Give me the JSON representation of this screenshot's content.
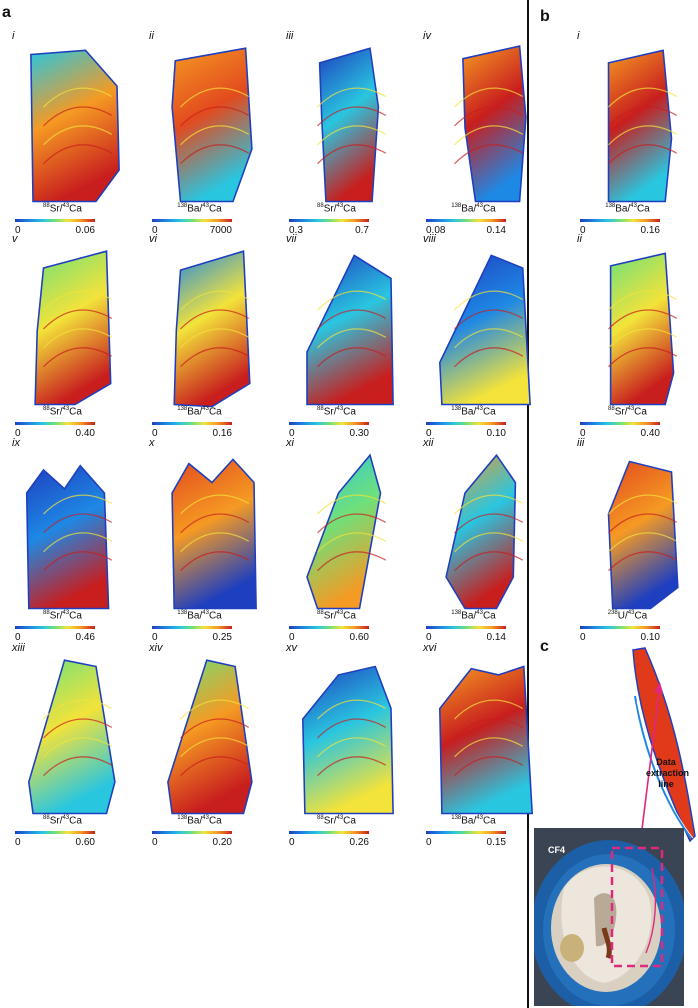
{
  "panel_labels": {
    "a": "a",
    "b": "b",
    "c": "c"
  },
  "panel_a": [
    {
      "num": "i",
      "iso": "88",
      "el": "Sr",
      "den": "43",
      "ca": "Ca",
      "min": "0",
      "max": "0.06"
    },
    {
      "num": "ii",
      "iso": "138",
      "el": "Ba",
      "den": "43",
      "ca": "Ca",
      "min": "0",
      "max": "7000"
    },
    {
      "num": "iii",
      "iso": "88",
      "el": "Sr",
      "den": "43",
      "ca": "Ca",
      "min": "0.3",
      "max": "0.7"
    },
    {
      "num": "iv",
      "iso": "138",
      "el": "Ba",
      "den": "43",
      "ca": "Ca",
      "min": "0.08",
      "max": "0.14"
    },
    {
      "num": "v",
      "iso": "88",
      "el": "Sr",
      "den": "43",
      "ca": "Ca",
      "min": "0",
      "max": "0.40"
    },
    {
      "num": "vi",
      "iso": "138",
      "el": "Ba",
      "den": "43",
      "ca": "Ca",
      "min": "0",
      "max": "0.16"
    },
    {
      "num": "vii",
      "iso": "88",
      "el": "Sr",
      "den": "43",
      "ca": "Ca",
      "min": "0",
      "max": "0.30"
    },
    {
      "num": "viii",
      "iso": "138",
      "el": "Ba",
      "den": "43",
      "ca": "Ca",
      "min": "0",
      "max": "0.10"
    },
    {
      "num": "ix",
      "iso": "88",
      "el": "Sr",
      "den": "43",
      "ca": "Ca",
      "min": "0",
      "max": "0.46"
    },
    {
      "num": "x",
      "iso": "138",
      "el": "Ba",
      "den": "43",
      "ca": "Ca",
      "min": "0",
      "max": "0.25"
    },
    {
      "num": "xi",
      "iso": "88",
      "el": "Sr",
      "den": "43",
      "ca": "Ca",
      "min": "0",
      "max": "0.60"
    },
    {
      "num": "xii",
      "iso": "138",
      "el": "Ba",
      "den": "43",
      "ca": "Ca",
      "min": "0",
      "max": "0.14"
    },
    {
      "num": "xiii",
      "iso": "88",
      "el": "Sr",
      "den": "43",
      "ca": "Ca",
      "min": "0",
      "max": "0.60"
    },
    {
      "num": "xiv",
      "iso": "138",
      "el": "Ba",
      "den": "43",
      "ca": "Ca",
      "min": "0",
      "max": "0.20"
    },
    {
      "num": "xv",
      "iso": "88",
      "el": "Sr",
      "den": "43",
      "ca": "Ca",
      "min": "0",
      "max": "0.26"
    },
    {
      "num": "xvi",
      "iso": "138",
      "el": "Ba",
      "den": "43",
      "ca": "Ca",
      "min": "0",
      "max": "0.15"
    }
  ],
  "panel_b": [
    {
      "num": "i",
      "iso": "138",
      "el": "Ba",
      "den": "43",
      "ca": "Ca",
      "min": "0",
      "max": "0.16"
    },
    {
      "num": "ii",
      "iso": "88",
      "el": "Sr",
      "den": "43",
      "ca": "Ca",
      "min": "0",
      "max": "0.40"
    },
    {
      "num": "iii",
      "iso": "238",
      "el": "U",
      "den": "43",
      "ca": "Ca",
      "min": "0",
      "max": "0.10"
    }
  ],
  "panel_c": {
    "sample_label": "CF4",
    "extraction_label_lines": [
      "Data",
      "extraction",
      "line"
    ],
    "arrow_color": "#e0287e",
    "box_color": "#e0287e"
  },
  "colormap": [
    "#1e3fbf",
    "#1e88e5",
    "#29c6e0",
    "#6fe07a",
    "#f3e33a",
    "#f59a23",
    "#c81e1e"
  ]
}
